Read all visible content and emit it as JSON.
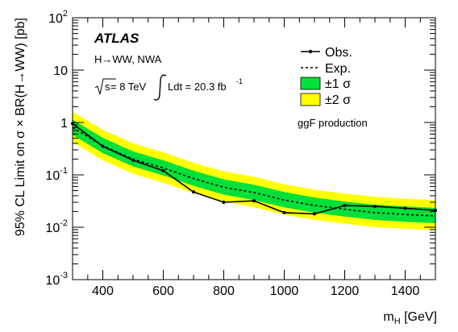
{
  "chart_data": {
    "type": "line",
    "xlabel": "m",
    "xlabel_sub": "H",
    "xlabel_unit": " [GeV]",
    "ylabel": "95% CL Limit on σ × BR(H→WW) [pb]",
    "xlim": [
      300,
      1500
    ],
    "ylim": [
      0.001,
      100
    ],
    "yscale": "log",
    "x_ticks": [
      400,
      600,
      800,
      1000,
      1200,
      1400
    ],
    "x_tick_labels": [
      "400",
      "600",
      "800",
      "1000",
      "1200",
      "1400"
    ],
    "y_ticks": [
      0.001,
      0.01,
      0.1,
      1,
      10,
      100
    ],
    "y_tick_labels": [
      {
        "base": "10",
        "exp": "-3"
      },
      {
        "base": "10",
        "exp": "-2"
      },
      {
        "base": "10",
        "exp": "-1"
      },
      {
        "base": "1",
        "exp": ""
      },
      {
        "base": "10",
        "exp": ""
      },
      {
        "base": "10",
        "exp": "2"
      }
    ],
    "annotations": {
      "experiment": "ATLAS",
      "process": "H→WW, NWA",
      "energy_prefix": "s",
      "energy": " = 8 TeV",
      "lumi": "Ldt = 20.3 fb",
      "lumi_exp": "-1",
      "production": "ggF production"
    },
    "legend": {
      "position": "top-right",
      "entries": [
        {
          "label": "Obs.",
          "style": "solid-marker"
        },
        {
          "label": "Exp.",
          "style": "dashed"
        },
        {
          "label": "±1 σ",
          "style": "fill-green"
        },
        {
          "label": "±2 σ",
          "style": "fill-yellow"
        }
      ]
    },
    "series": [
      {
        "name": "Obs.",
        "x": [
          300,
          400,
          500,
          600,
          700,
          800,
          900,
          1000,
          1100,
          1200,
          1300,
          1400,
          1500
        ],
        "y": [
          0.95,
          0.35,
          0.19,
          0.12,
          0.047,
          0.03,
          0.032,
          0.019,
          0.018,
          0.026,
          0.025,
          0.023,
          0.021
        ]
      },
      {
        "name": "Exp.",
        "x": [
          300,
          400,
          500,
          600,
          700,
          800,
          900,
          1000,
          1100,
          1200,
          1300,
          1400,
          1500
        ],
        "y": [
          0.8,
          0.36,
          0.2,
          0.135,
          0.085,
          0.058,
          0.046,
          0.033,
          0.026,
          0.022,
          0.019,
          0.0175,
          0.0165
        ]
      }
    ],
    "band_1sigma": {
      "x": [
        300,
        400,
        500,
        600,
        700,
        800,
        900,
        1000,
        1100,
        1200,
        1300,
        1400,
        1500
      ],
      "low": [
        0.58,
        0.26,
        0.145,
        0.098,
        0.062,
        0.042,
        0.033,
        0.024,
        0.019,
        0.016,
        0.0138,
        0.0127,
        0.012
      ],
      "high": [
        1.13,
        0.51,
        0.28,
        0.19,
        0.12,
        0.082,
        0.065,
        0.047,
        0.037,
        0.031,
        0.027,
        0.025,
        0.0234
      ]
    },
    "band_2sigma": {
      "x": [
        300,
        400,
        500,
        600,
        700,
        800,
        900,
        1000,
        1100,
        1200,
        1300,
        1400,
        1500
      ],
      "low": [
        0.42,
        0.19,
        0.105,
        0.071,
        0.045,
        0.031,
        0.024,
        0.0175,
        0.0138,
        0.0117,
        0.0101,
        0.0093,
        0.0088
      ],
      "high": [
        1.6,
        0.72,
        0.4,
        0.27,
        0.17,
        0.116,
        0.092,
        0.066,
        0.052,
        0.044,
        0.038,
        0.035,
        0.033
      ]
    },
    "colors": {
      "band_1sigma": "#00e03a",
      "band_2sigma": "#ffff00",
      "observed": "#000000",
      "expected": "#000000"
    }
  }
}
